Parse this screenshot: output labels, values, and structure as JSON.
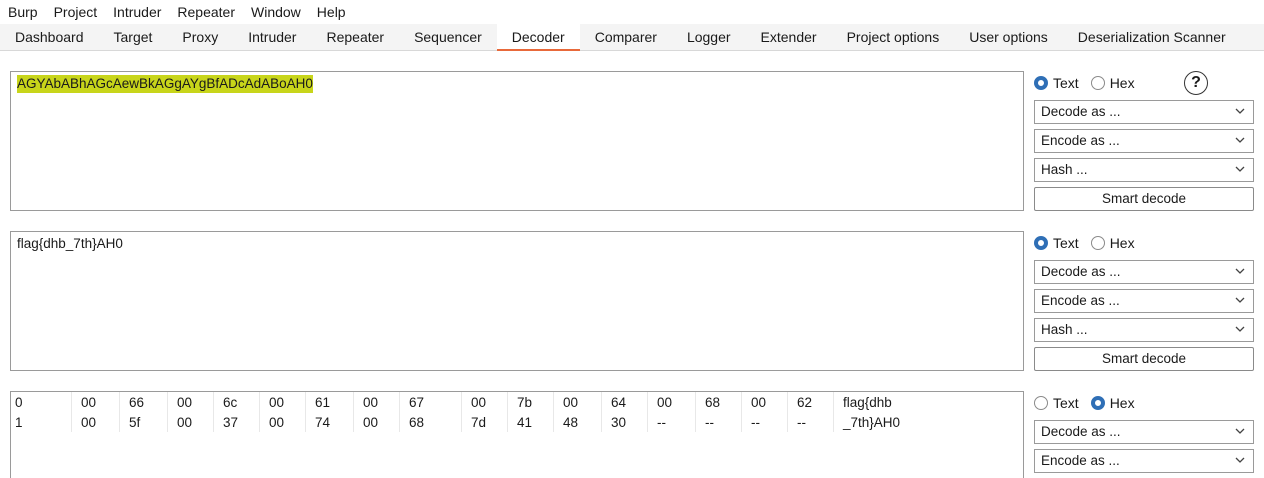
{
  "menubar": [
    "Burp",
    "Project",
    "Intruder",
    "Repeater",
    "Window",
    "Help"
  ],
  "tabs": [
    "Dashboard",
    "Target",
    "Proxy",
    "Intruder",
    "Repeater",
    "Sequencer",
    "Decoder",
    "Comparer",
    "Logger",
    "Extender",
    "Project options",
    "User options",
    "Deserialization Scanner"
  ],
  "active_tab": "Decoder",
  "accent_color": "#e8693a",
  "highlight_color": "#c8d51a",
  "panel1": {
    "text": "AGYAbABhAGcAewBkAGgAYgBfADcAdABoAH0",
    "mode": "text",
    "radio_text": "Text",
    "radio_hex": "Hex",
    "help": "?",
    "decode": "Decode as ...",
    "encode": "Encode as ...",
    "hash": "Hash ...",
    "smart": "Smart decode"
  },
  "panel2": {
    "text": "flag{dhb_7th}AH0",
    "mode": "text",
    "radio_text": "Text",
    "radio_hex": "Hex",
    "decode": "Decode as ...",
    "encode": "Encode as ...",
    "hash": "Hash ...",
    "smart": "Smart decode"
  },
  "panel3": {
    "mode": "hex",
    "radio_text": "Text",
    "radio_hex": "Hex",
    "decode": "Decode as ...",
    "encode": "Encode as ...",
    "rows": [
      {
        "offset": "0",
        "bytes": [
          "00",
          "66",
          "00",
          "6c",
          "00",
          "61",
          "00",
          "67",
          "00",
          "7b",
          "00",
          "64",
          "00",
          "68",
          "00",
          "62"
        ],
        "ascii": "flag{dhb"
      },
      {
        "offset": "1",
        "bytes": [
          "00",
          "5f",
          "00",
          "37",
          "00",
          "74",
          "00",
          "68",
          "7d",
          "41",
          "48",
          "30",
          "--",
          "--",
          "--",
          "--"
        ],
        "ascii": "_7th}AH0"
      }
    ]
  },
  "icons": {
    "chevron": "chevron-down-icon",
    "help": "help-icon"
  }
}
